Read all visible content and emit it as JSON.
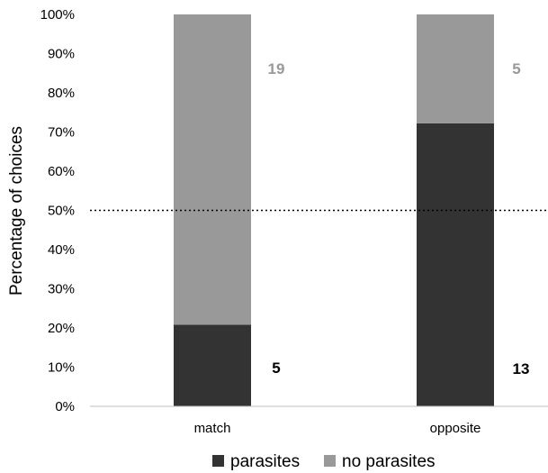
{
  "chart_data": {
    "type": "bar",
    "stacked": true,
    "categories": [
      "match",
      "opposite"
    ],
    "series": [
      {
        "name": "parasites",
        "color": "#333333",
        "values": [
          20.8,
          72.2
        ],
        "counts": [
          "5",
          "13"
        ],
        "count_color": "#000000"
      },
      {
        "name": "no parasites",
        "color": "#999999",
        "values": [
          79.2,
          27.8
        ],
        "counts": [
          "19",
          "5"
        ],
        "count_color": "#999999"
      }
    ],
    "ylabel": "Percentage of choices",
    "ylim": [
      0,
      100
    ],
    "yticks": [
      "0%",
      "10%",
      "20%",
      "30%",
      "40%",
      "50%",
      "60%",
      "70%",
      "80%",
      "90%",
      "100%"
    ],
    "reference_line": {
      "value": 50,
      "style": "dotted"
    },
    "legend_position": "bottom",
    "grid": false
  }
}
